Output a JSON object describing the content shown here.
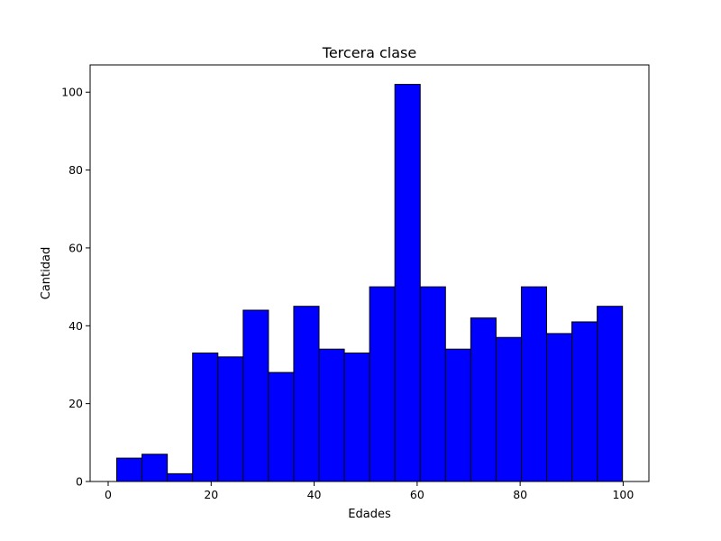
{
  "chart_data": {
    "type": "bar",
    "title": "Tercera clase",
    "xlabel": "Edades",
    "ylabel": "Cantidad",
    "xlim": [
      -3.5,
      105.0
    ],
    "ylim": [
      0,
      107
    ],
    "x_ticks": [
      0,
      20,
      40,
      60,
      80,
      100
    ],
    "y_ticks": [
      0,
      20,
      40,
      60,
      80,
      100
    ],
    "grid": false,
    "bar_color": "#0000ff",
    "edge_color": "#000000",
    "bins": [
      {
        "start": 1.67,
        "end": 6.58,
        "value": 6
      },
      {
        "start": 6.58,
        "end": 11.49,
        "value": 7
      },
      {
        "start": 11.49,
        "end": 16.4,
        "value": 2
      },
      {
        "start": 16.4,
        "end": 21.31,
        "value": 33
      },
      {
        "start": 21.31,
        "end": 26.22,
        "value": 32
      },
      {
        "start": 26.22,
        "end": 31.13,
        "value": 44
      },
      {
        "start": 31.13,
        "end": 36.04,
        "value": 28
      },
      {
        "start": 36.04,
        "end": 40.95,
        "value": 45
      },
      {
        "start": 40.95,
        "end": 45.86,
        "value": 34
      },
      {
        "start": 45.86,
        "end": 50.77,
        "value": 33
      },
      {
        "start": 50.77,
        "end": 55.68,
        "value": 50
      },
      {
        "start": 55.68,
        "end": 60.59,
        "value": 102
      },
      {
        "start": 60.59,
        "end": 65.5,
        "value": 50
      },
      {
        "start": 65.5,
        "end": 70.41,
        "value": 34
      },
      {
        "start": 70.41,
        "end": 75.32,
        "value": 42
      },
      {
        "start": 75.32,
        "end": 80.23,
        "value": 37
      },
      {
        "start": 80.23,
        "end": 85.14,
        "value": 50
      },
      {
        "start": 85.14,
        "end": 90.05,
        "value": 38
      },
      {
        "start": 90.05,
        "end": 94.96,
        "value": 41
      },
      {
        "start": 94.96,
        "end": 99.87,
        "value": 45
      }
    ]
  }
}
